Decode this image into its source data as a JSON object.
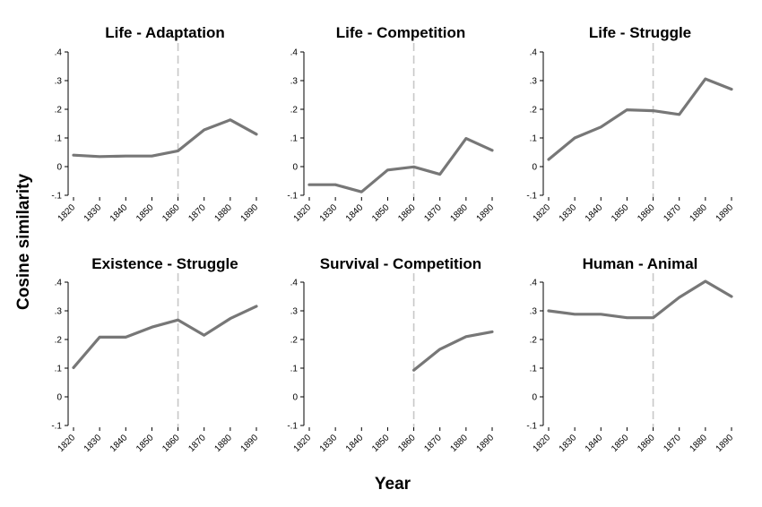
{
  "figure": {
    "xlabel": "Year",
    "ylabel": "Cosine similarity",
    "colors": {
      "line": "#777777",
      "reference_line": "#c8c8c8",
      "axis": "#000000"
    }
  },
  "chart_data": [
    {
      "type": "line",
      "title": "Life - Adaptation",
      "x": [
        1820,
        1830,
        1840,
        1850,
        1860,
        1870,
        1880,
        1890
      ],
      "y": [
        0.04,
        0.035,
        0.037,
        0.037,
        0.055,
        0.128,
        0.163,
        0.113
      ],
      "xlim": [
        1820,
        1890
      ],
      "ylim": [
        -0.1,
        0.4
      ],
      "xticks": [
        "1820",
        "1830",
        "1840",
        "1850",
        "1860",
        "1870",
        "1880",
        "1890"
      ],
      "yticks": [
        "-.1",
        "0",
        ".1",
        ".2",
        ".3",
        ".4"
      ],
      "reference_x": 1860,
      "grid": false
    },
    {
      "type": "line",
      "title": "Life - Competition",
      "x": [
        1820,
        1830,
        1840,
        1850,
        1860,
        1870,
        1880,
        1890
      ],
      "y": [
        -0.063,
        -0.063,
        -0.088,
        -0.012,
        -0.001,
        -0.027,
        0.098,
        0.057
      ],
      "xlim": [
        1820,
        1890
      ],
      "ylim": [
        -0.1,
        0.4
      ],
      "xticks": [
        "1820",
        "1830",
        "1840",
        "1850",
        "1860",
        "1870",
        "1880",
        "1890"
      ],
      "yticks": [
        "-.1",
        "0",
        ".1",
        ".2",
        ".3",
        ".4"
      ],
      "reference_x": 1860,
      "grid": false
    },
    {
      "type": "line",
      "title": "Life - Struggle",
      "x": [
        1820,
        1830,
        1840,
        1850,
        1860,
        1870,
        1880,
        1890
      ],
      "y": [
        0.025,
        0.1,
        0.138,
        0.198,
        0.195,
        0.182,
        0.306,
        0.27
      ],
      "xlim": [
        1820,
        1890
      ],
      "ylim": [
        -0.1,
        0.4
      ],
      "xticks": [
        "1820",
        "1830",
        "1840",
        "1850",
        "1860",
        "1870",
        "1880",
        "1890"
      ],
      "yticks": [
        "-.1",
        "0",
        ".1",
        ".2",
        ".3",
        ".4"
      ],
      "reference_x": 1860,
      "grid": false
    },
    {
      "type": "line",
      "title": "Existence - Struggle",
      "x": [
        1820,
        1830,
        1840,
        1850,
        1860,
        1870,
        1880,
        1890
      ],
      "y": [
        0.102,
        0.208,
        0.208,
        0.243,
        0.268,
        0.215,
        0.273,
        0.316
      ],
      "xlim": [
        1820,
        1890
      ],
      "ylim": [
        -0.1,
        0.4
      ],
      "xticks": [
        "1820",
        "1830",
        "1840",
        "1850",
        "1860",
        "1870",
        "1880",
        "1890"
      ],
      "yticks": [
        "-.1",
        "0",
        ".1",
        ".2",
        ".3",
        ".4"
      ],
      "reference_x": 1860,
      "grid": false
    },
    {
      "type": "line",
      "title": "Survival - Competition",
      "x": [
        1860,
        1870,
        1880,
        1890
      ],
      "y": [
        0.093,
        0.166,
        0.21,
        0.227
      ],
      "xlim": [
        1820,
        1890
      ],
      "ylim": [
        -0.1,
        0.4
      ],
      "xticks": [
        "1820",
        "1830",
        "1840",
        "1850",
        "1860",
        "1870",
        "1880",
        "1890"
      ],
      "yticks": [
        "-.1",
        "0",
        ".1",
        ".2",
        ".3",
        ".4"
      ],
      "reference_x": 1860,
      "grid": false
    },
    {
      "type": "line",
      "title": "Human - Animal",
      "x": [
        1820,
        1830,
        1840,
        1850,
        1860,
        1870,
        1880,
        1890
      ],
      "y": [
        0.3,
        0.288,
        0.288,
        0.276,
        0.276,
        0.347,
        0.403,
        0.35
      ],
      "xlim": [
        1820,
        1890
      ],
      "ylim": [
        -0.1,
        0.4
      ],
      "xticks": [
        "1820",
        "1830",
        "1840",
        "1850",
        "1860",
        "1870",
        "1880",
        "1890"
      ],
      "yticks": [
        "-.1",
        "0",
        ".1",
        ".2",
        ".3",
        ".4"
      ],
      "reference_x": 1860,
      "grid": false
    }
  ]
}
